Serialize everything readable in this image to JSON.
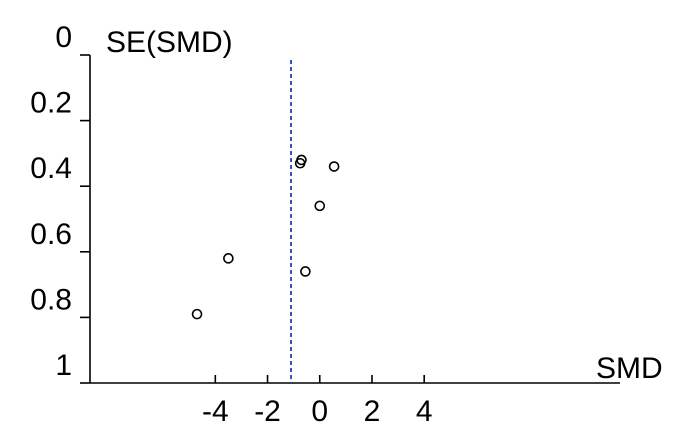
{
  "chart_data": {
    "type": "scatter",
    "title": "",
    "xlabel": "SMD",
    "ylabel": "SE(SMD)",
    "xlim": [
      -8.8,
      11.5
    ],
    "ylim": [
      0,
      1
    ],
    "y_inverted": true,
    "x_ticks": [
      -4,
      -2,
      0,
      2,
      4
    ],
    "x_tick_labels": [
      "-4",
      "-2",
      "0",
      "2",
      "4"
    ],
    "y_ticks": [
      0,
      0.2,
      0.4,
      0.6,
      0.8,
      1
    ],
    "y_tick_labels": [
      "0",
      "0.2",
      "0.4",
      "0.6",
      "0.8",
      "1"
    ],
    "reference_line_x": -1.1,
    "grid": false,
    "series": [
      {
        "points": [
          {
            "x": -4.7,
            "y": 0.79
          },
          {
            "x": -3.5,
            "y": 0.62
          },
          {
            "x": -0.7,
            "y": 0.32
          },
          {
            "x": -0.75,
            "y": 0.33
          },
          {
            "x": 0.55,
            "y": 0.34
          },
          {
            "x": 0.0,
            "y": 0.46
          },
          {
            "x": -0.55,
            "y": 0.66
          }
        ]
      }
    ],
    "colors": {
      "points": "#000000",
      "axis": "#000000",
      "reference_line": "#1f3fbf"
    }
  }
}
